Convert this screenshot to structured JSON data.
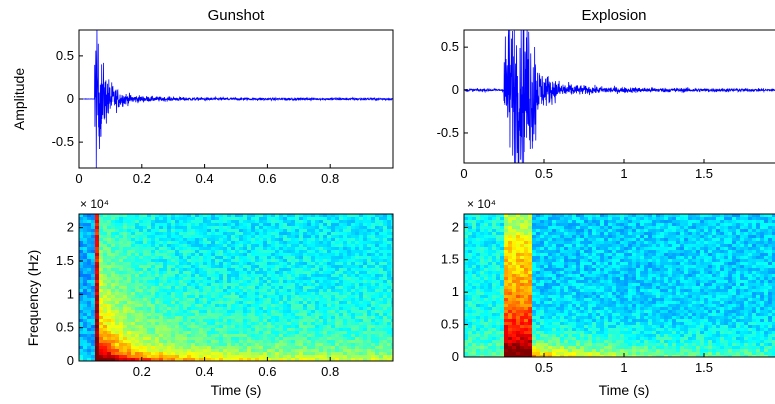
{
  "chart_data": [
    {
      "type": "line",
      "title": "Gunshot",
      "xlabel": "",
      "ylabel": "Amplitude",
      "xlim": [
        0,
        1.0
      ],
      "ylim": [
        -0.8,
        0.8
      ],
      "xticks": [
        "0",
        "0.2",
        "0.4",
        "0.6",
        "0.8"
      ],
      "yticks": [
        "0.5",
        "0",
        "-0.5"
      ],
      "series": [
        {
          "color": "#0000ff",
          "onset": 0.05,
          "peak_amplitude": 0.8,
          "decay_end": 0.25
        }
      ]
    },
    {
      "type": "line",
      "title": "Explosion",
      "xlabel": "",
      "ylabel": "",
      "xlim": [
        0,
        2.0
      ],
      "ylim": [
        -0.85,
        0.7
      ],
      "xticks": [
        "0",
        "0.5",
        "1",
        "1.5",
        "2"
      ],
      "yticks": [
        "0.5",
        "0",
        "-0.5"
      ],
      "series": [
        {
          "color": "#0000ff",
          "onset": 0.25,
          "burst_end": 0.45,
          "peak_amplitude": 0.85
        }
      ]
    },
    {
      "type": "heatmap",
      "title": "",
      "xlabel": "Time (s)",
      "ylabel": "Frequency (Hz)",
      "xlim": [
        0,
        1.0
      ],
      "ylim": [
        0,
        22050
      ],
      "y_exponent": "× 10⁴",
      "xticks": [
        "0.2",
        "0.4",
        "0.6",
        "0.8"
      ],
      "yticks": [
        "0",
        "0.5",
        "1",
        "1.5",
        "2"
      ],
      "colormap": "jet",
      "event_onset": 0.05
    },
    {
      "type": "heatmap",
      "title": "",
      "xlabel": "Time (s)",
      "ylabel": "",
      "xlim": [
        0,
        2.0
      ],
      "ylim": [
        0,
        22050
      ],
      "y_exponent": "× 10⁴",
      "xticks": [
        "0.5",
        "1",
        "1.5"
      ],
      "yticks": [
        "0",
        "0.5",
        "1",
        "1.5",
        "2"
      ],
      "colormap": "jet",
      "event_onset": 0.25
    }
  ]
}
